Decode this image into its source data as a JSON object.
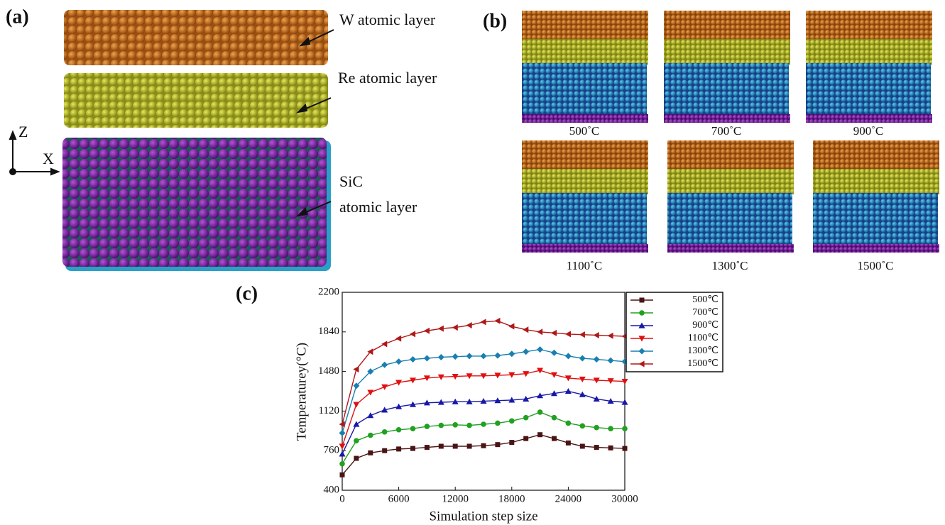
{
  "panel_a": {
    "label": "(a)",
    "axis_z": "Z",
    "axis_x": "X",
    "layers": [
      "W atomic layer",
      "Re atomic layer"
    ],
    "sic": [
      "SiC",
      "atomic layer"
    ]
  },
  "panel_b": {
    "label": "(b)",
    "captions": [
      "500˚C",
      "700˚C",
      "900˚C",
      "1100˚C",
      "1300˚C",
      "1500˚C"
    ]
  },
  "chart_data": {
    "type": "line",
    "panel_label": "(c)",
    "x_label": "Simulation step size",
    "y_label": "Temperaturey(°C)",
    "x": [
      0,
      1500,
      3000,
      4500,
      6000,
      7500,
      9000,
      10500,
      12000,
      13500,
      15000,
      16500,
      18000,
      19500,
      21000,
      22500,
      24000,
      25500,
      27000,
      28500,
      30000
    ],
    "xlim": [
      0,
      30000
    ],
    "xticks": [
      0,
      6000,
      12000,
      18000,
      24000,
      30000
    ],
    "ylim": [
      400,
      2200
    ],
    "yticks": [
      400,
      760,
      1120,
      1480,
      1840,
      2200
    ],
    "legend": "outside-right",
    "series": [
      {
        "name": "500℃",
        "color": "#4a1414",
        "marker": "square",
        "values": [
          540,
          690,
          740,
          760,
          775,
          780,
          790,
          800,
          800,
          800,
          805,
          815,
          835,
          870,
          905,
          870,
          830,
          800,
          790,
          785,
          780
        ]
      },
      {
        "name": "700℃",
        "color": "#22a022",
        "marker": "circle",
        "values": [
          640,
          850,
          900,
          930,
          950,
          960,
          980,
          990,
          995,
          990,
          1000,
          1010,
          1030,
          1060,
          1110,
          1060,
          1010,
          985,
          970,
          960,
          960
        ]
      },
      {
        "name": "900℃",
        "color": "#1818a8",
        "marker": "triangle-up",
        "values": [
          730,
          1000,
          1080,
          1130,
          1160,
          1180,
          1195,
          1200,
          1205,
          1205,
          1210,
          1215,
          1220,
          1230,
          1260,
          1280,
          1300,
          1270,
          1230,
          1210,
          1200
        ]
      },
      {
        "name": "1100℃",
        "color": "#e01010",
        "marker": "triangle-down",
        "values": [
          800,
          1180,
          1290,
          1340,
          1380,
          1400,
          1420,
          1430,
          1435,
          1440,
          1440,
          1445,
          1450,
          1460,
          1490,
          1450,
          1420,
          1410,
          1400,
          1395,
          1390
        ]
      },
      {
        "name": "1300℃",
        "color": "#1a7fb0",
        "marker": "diamond",
        "values": [
          920,
          1350,
          1480,
          1540,
          1570,
          1590,
          1600,
          1610,
          1615,
          1620,
          1620,
          1625,
          1640,
          1660,
          1680,
          1650,
          1620,
          1600,
          1590,
          1580,
          1570
        ]
      },
      {
        "name": "1500℃",
        "color": "#b01818",
        "marker": "triangle-left",
        "values": [
          1000,
          1500,
          1660,
          1730,
          1780,
          1820,
          1850,
          1870,
          1880,
          1900,
          1930,
          1940,
          1890,
          1860,
          1840,
          1830,
          1820,
          1815,
          1810,
          1805,
          1800
        ]
      }
    ]
  }
}
